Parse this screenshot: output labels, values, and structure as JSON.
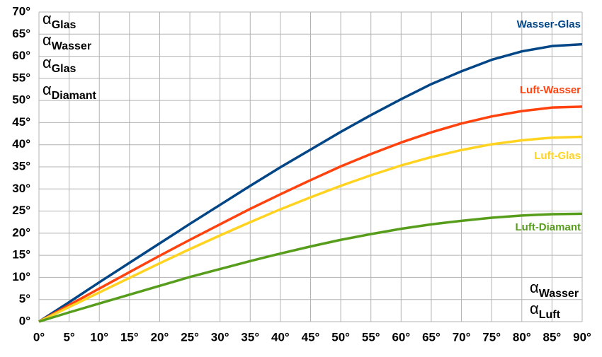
{
  "chart_data": {
    "type": "line",
    "x": [
      0,
      5,
      10,
      15,
      20,
      25,
      30,
      35,
      40,
      45,
      50,
      55,
      60,
      65,
      70,
      75,
      80,
      85,
      90
    ],
    "series": [
      {
        "name": "Wasser-Glas",
        "color": "#004586",
        "values": [
          0,
          4.4,
          8.9,
          13.3,
          17.7,
          22.1,
          26.4,
          30.7,
          34.9,
          38.9,
          42.9,
          46.7,
          50.3,
          53.7,
          56.6,
          59.2,
          61.1,
          62.3,
          62.7
        ]
      },
      {
        "name": "Luft-Wasser",
        "color": "#ff420e",
        "values": [
          0,
          3.75,
          7.48,
          11.2,
          14.9,
          18.5,
          22.0,
          25.5,
          28.8,
          32.0,
          35.1,
          37.9,
          40.5,
          42.8,
          44.8,
          46.4,
          47.6,
          48.4,
          48.6
        ]
      },
      {
        "name": "Luft-Glas",
        "color": "#ffd320",
        "values": [
          0,
          3.3,
          6.6,
          9.9,
          13.2,
          16.4,
          19.5,
          22.5,
          25.4,
          28.1,
          30.7,
          33.1,
          35.3,
          37.2,
          38.8,
          40.1,
          41.0,
          41.6,
          41.8
        ]
      },
      {
        "name": "Luft-Diamant",
        "color": "#579d1c",
        "values": [
          0,
          2.1,
          4.1,
          6.1,
          8.1,
          10.1,
          11.9,
          13.7,
          15.4,
          17.0,
          18.5,
          19.8,
          21.0,
          22.0,
          22.8,
          23.5,
          24.0,
          24.3,
          24.4
        ]
      }
    ],
    "xlim": [
      0,
      90
    ],
    "ylim": [
      0,
      70
    ],
    "xticks": [
      {
        "value": 0,
        "label": "0°"
      },
      {
        "value": 5,
        "label": "5°"
      },
      {
        "value": 10,
        "label": "10°"
      },
      {
        "value": 15,
        "label": "15°"
      },
      {
        "value": 20,
        "label": "20°"
      },
      {
        "value": 25,
        "label": "25°"
      },
      {
        "value": 30,
        "label": "30°"
      },
      {
        "value": 35,
        "label": "35°"
      },
      {
        "value": 40,
        "label": "40°"
      },
      {
        "value": 45,
        "label": "45°"
      },
      {
        "value": 50,
        "label": "50°"
      },
      {
        "value": 55,
        "label": "55°"
      },
      {
        "value": 60,
        "label": "60°"
      },
      {
        "value": 65,
        "label": "65°"
      },
      {
        "value": 70,
        "label": "70°"
      },
      {
        "value": 75,
        "label": "75°"
      },
      {
        "value": 80,
        "label": "80°"
      },
      {
        "value": 85,
        "label": "85°"
      },
      {
        "value": 90,
        "label": "90°"
      }
    ],
    "yticks": [
      {
        "value": 0,
        "label": "0°"
      },
      {
        "value": 5,
        "label": "5°"
      },
      {
        "value": 10,
        "label": "10°"
      },
      {
        "value": 15,
        "label": "15°"
      },
      {
        "value": 20,
        "label": "20°"
      },
      {
        "value": 25,
        "label": "25°"
      },
      {
        "value": 30,
        "label": "30°"
      },
      {
        "value": 35,
        "label": "35°"
      },
      {
        "value": 40,
        "label": "40°"
      },
      {
        "value": 45,
        "label": "45°"
      },
      {
        "value": 50,
        "label": "50°"
      },
      {
        "value": 55,
        "label": "55°"
      },
      {
        "value": 60,
        "label": "60°"
      },
      {
        "value": 65,
        "label": "65°"
      },
      {
        "value": 70,
        "label": "70°"
      }
    ],
    "grid": true,
    "y_annotations": [
      {
        "symbol": "α",
        "sub": "Glas"
      },
      {
        "symbol": "α",
        "sub": "Wasser"
      },
      {
        "symbol": "α",
        "sub": "Glas"
      },
      {
        "symbol": "α",
        "sub": "Diamant"
      }
    ],
    "x_annotations": [
      {
        "symbol": "α",
        "sub": "Wasser"
      },
      {
        "symbol": "α",
        "sub": "Luft"
      }
    ]
  }
}
